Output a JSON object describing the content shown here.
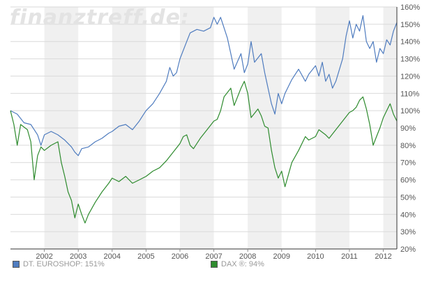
{
  "watermark": "finanztreff.de:",
  "colors": {
    "euroshop": "#4f7cbf",
    "dax": "#2e8b2e",
    "band": "#f0f0f0",
    "grid": "#d9d9d9",
    "axis_text": "#555555"
  },
  "chart_data": {
    "type": "line",
    "x_axis": {
      "ticks": [
        "2002",
        "2003",
        "2004",
        "2005",
        "2006",
        "2007",
        "2008",
        "2009",
        "2010",
        "2011",
        "2012"
      ]
    },
    "y_axis": {
      "ticks": [
        "20%",
        "30%",
        "40%",
        "50%",
        "60%",
        "70%",
        "80%",
        "90%",
        "100%",
        "110%",
        "120%",
        "130%",
        "140%",
        "150%",
        "160%"
      ],
      "ylim": [
        20,
        160
      ],
      "position": "right"
    },
    "x_range": [
      2001.0,
      2012.4
    ],
    "grid": true,
    "legend_position": "bottom",
    "series": [
      {
        "name": "DT. EUROSHOP: 151%",
        "color": "#4f7cbf",
        "points": [
          [
            2001.0,
            100
          ],
          [
            2001.2,
            98
          ],
          [
            2001.4,
            93
          ],
          [
            2001.6,
            92
          ],
          [
            2001.8,
            86
          ],
          [
            2001.9,
            80
          ],
          [
            2002.0,
            86
          ],
          [
            2002.2,
            88
          ],
          [
            2002.4,
            86
          ],
          [
            2002.6,
            83
          ],
          [
            2002.8,
            79
          ],
          [
            2002.9,
            76
          ],
          [
            2003.0,
            74
          ],
          [
            2003.1,
            78
          ],
          [
            2003.3,
            79
          ],
          [
            2003.5,
            82
          ],
          [
            2003.7,
            84
          ],
          [
            2003.9,
            87
          ],
          [
            2004.0,
            88
          ],
          [
            2004.2,
            91
          ],
          [
            2004.4,
            92
          ],
          [
            2004.6,
            89
          ],
          [
            2004.8,
            94
          ],
          [
            2004.9,
            97
          ],
          [
            2005.0,
            100
          ],
          [
            2005.2,
            104
          ],
          [
            2005.4,
            110
          ],
          [
            2005.6,
            117
          ],
          [
            2005.7,
            125
          ],
          [
            2005.8,
            120
          ],
          [
            2005.9,
            122
          ],
          [
            2006.0,
            130
          ],
          [
            2006.2,
            140
          ],
          [
            2006.3,
            145
          ],
          [
            2006.5,
            147
          ],
          [
            2006.7,
            146
          ],
          [
            2006.9,
            148
          ],
          [
            2007.0,
            154
          ],
          [
            2007.1,
            150
          ],
          [
            2007.2,
            154
          ],
          [
            2007.4,
            142
          ],
          [
            2007.5,
            133
          ],
          [
            2007.6,
            124
          ],
          [
            2007.8,
            133
          ],
          [
            2007.9,
            122
          ],
          [
            2008.0,
            127
          ],
          [
            2008.1,
            140
          ],
          [
            2008.2,
            128
          ],
          [
            2008.4,
            133
          ],
          [
            2008.5,
            122
          ],
          [
            2008.6,
            113
          ],
          [
            2008.7,
            104
          ],
          [
            2008.8,
            98
          ],
          [
            2008.9,
            110
          ],
          [
            2009.0,
            104
          ],
          [
            2009.1,
            110
          ],
          [
            2009.3,
            118
          ],
          [
            2009.5,
            124
          ],
          [
            2009.7,
            117
          ],
          [
            2009.8,
            121
          ],
          [
            2010.0,
            126
          ],
          [
            2010.1,
            120
          ],
          [
            2010.2,
            128
          ],
          [
            2010.3,
            117
          ],
          [
            2010.4,
            121
          ],
          [
            2010.5,
            113
          ],
          [
            2010.6,
            117
          ],
          [
            2010.8,
            130
          ],
          [
            2010.9,
            143
          ],
          [
            2011.0,
            152
          ],
          [
            2011.1,
            142
          ],
          [
            2011.2,
            150
          ],
          [
            2011.3,
            146
          ],
          [
            2011.4,
            155
          ],
          [
            2011.5,
            140
          ],
          [
            2011.6,
            136
          ],
          [
            2011.7,
            140
          ],
          [
            2011.8,
            128
          ],
          [
            2011.9,
            136
          ],
          [
            2012.0,
            133
          ],
          [
            2012.1,
            141
          ],
          [
            2012.2,
            138
          ],
          [
            2012.3,
            146
          ],
          [
            2012.4,
            151
          ]
        ]
      },
      {
        "name": "DAX ®: 94%",
        "color": "#2e8b2e",
        "points": [
          [
            2001.0,
            100
          ],
          [
            2001.1,
            92
          ],
          [
            2001.2,
            80
          ],
          [
            2001.3,
            92
          ],
          [
            2001.5,
            89
          ],
          [
            2001.6,
            82
          ],
          [
            2001.7,
            60
          ],
          [
            2001.8,
            74
          ],
          [
            2001.9,
            79
          ],
          [
            2002.0,
            77
          ],
          [
            2002.2,
            80
          ],
          [
            2002.4,
            82
          ],
          [
            2002.5,
            70
          ],
          [
            2002.6,
            62
          ],
          [
            2002.7,
            53
          ],
          [
            2002.8,
            48
          ],
          [
            2002.9,
            38
          ],
          [
            2003.0,
            46
          ],
          [
            2003.1,
            40
          ],
          [
            2003.2,
            35
          ],
          [
            2003.3,
            40
          ],
          [
            2003.5,
            47
          ],
          [
            2003.7,
            53
          ],
          [
            2003.9,
            58
          ],
          [
            2004.0,
            61
          ],
          [
            2004.2,
            59
          ],
          [
            2004.4,
            62
          ],
          [
            2004.6,
            58
          ],
          [
            2004.8,
            60
          ],
          [
            2005.0,
            62
          ],
          [
            2005.2,
            65
          ],
          [
            2005.4,
            67
          ],
          [
            2005.6,
            71
          ],
          [
            2005.8,
            76
          ],
          [
            2006.0,
            81
          ],
          [
            2006.1,
            85
          ],
          [
            2006.2,
            86
          ],
          [
            2006.3,
            80
          ],
          [
            2006.4,
            78
          ],
          [
            2006.6,
            84
          ],
          [
            2006.8,
            89
          ],
          [
            2007.0,
            94
          ],
          [
            2007.1,
            95
          ],
          [
            2007.2,
            100
          ],
          [
            2007.3,
            108
          ],
          [
            2007.5,
            113
          ],
          [
            2007.6,
            103
          ],
          [
            2007.8,
            113
          ],
          [
            2007.9,
            117
          ],
          [
            2008.0,
            110
          ],
          [
            2008.1,
            96
          ],
          [
            2008.3,
            101
          ],
          [
            2008.4,
            97
          ],
          [
            2008.5,
            91
          ],
          [
            2008.6,
            90
          ],
          [
            2008.7,
            77
          ],
          [
            2008.8,
            67
          ],
          [
            2008.9,
            61
          ],
          [
            2009.0,
            65
          ],
          [
            2009.1,
            56
          ],
          [
            2009.2,
            63
          ],
          [
            2009.3,
            70
          ],
          [
            2009.5,
            77
          ],
          [
            2009.7,
            85
          ],
          [
            2009.8,
            83
          ],
          [
            2010.0,
            85
          ],
          [
            2010.1,
            89
          ],
          [
            2010.3,
            86
          ],
          [
            2010.4,
            84
          ],
          [
            2010.6,
            89
          ],
          [
            2010.8,
            94
          ],
          [
            2011.0,
            99
          ],
          [
            2011.1,
            100
          ],
          [
            2011.2,
            102
          ],
          [
            2011.3,
            106
          ],
          [
            2011.4,
            108
          ],
          [
            2011.5,
            101
          ],
          [
            2011.6,
            92
          ],
          [
            2011.7,
            80
          ],
          [
            2011.8,
            85
          ],
          [
            2011.9,
            90
          ],
          [
            2012.0,
            96
          ],
          [
            2012.1,
            100
          ],
          [
            2012.2,
            104
          ],
          [
            2012.3,
            98
          ],
          [
            2012.4,
            94
          ]
        ]
      }
    ]
  },
  "legend": {
    "euroshop_label": "DT. EUROSHOP: 151%",
    "dax_label": "DAX ®: 94%"
  }
}
